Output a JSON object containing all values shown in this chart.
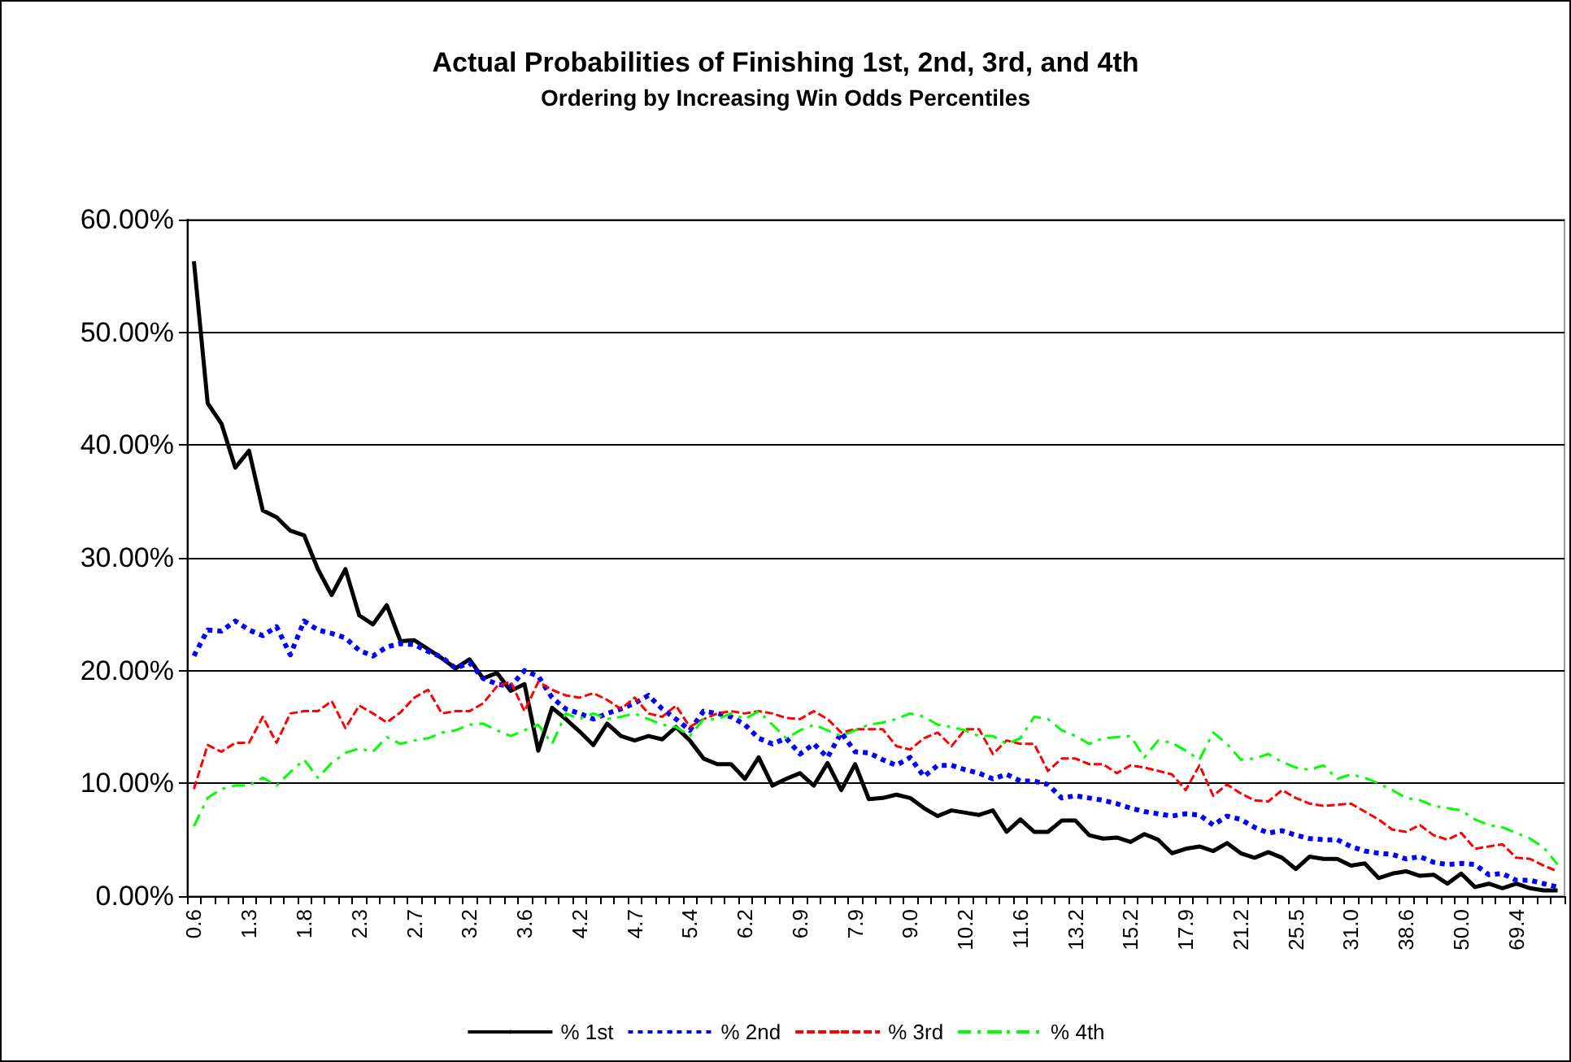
{
  "chart_data": {
    "type": "line",
    "title": "Actual Probabilities of Finishing 1st, 2nd, 3rd, and 4th",
    "subtitle": "Ordering by Increasing Win Odds Percentiles",
    "categories": [
      "0.6",
      null,
      null,
      null,
      "1.3",
      null,
      null,
      null,
      "1.8",
      null,
      null,
      null,
      "2.3",
      null,
      null,
      null,
      "2.7",
      null,
      null,
      null,
      "3.2",
      null,
      null,
      null,
      "3.6",
      null,
      null,
      null,
      "4.2",
      null,
      null,
      null,
      "4.7",
      null,
      null,
      null,
      "5.4",
      null,
      null,
      null,
      "6.2",
      null,
      null,
      null,
      "6.9",
      null,
      null,
      null,
      "7.9",
      null,
      null,
      null,
      "9.0",
      null,
      null,
      null,
      "10.2",
      null,
      null,
      null,
      "11.6",
      null,
      null,
      null,
      "13.2",
      null,
      null,
      null,
      "15.2",
      null,
      null,
      null,
      "17.9",
      null,
      null,
      null,
      "21.2",
      null,
      null,
      null,
      "25.5",
      null,
      null,
      null,
      "31.0",
      null,
      null,
      null,
      "38.6",
      null,
      null,
      null,
      "50.0",
      null,
      null,
      null,
      "69.4",
      null,
      null,
      null
    ],
    "series": [
      {
        "name": "% 1st",
        "color": "#000000",
        "line_style": "solid",
        "values": [
          56.3,
          43.7,
          41.9,
          38.0,
          39.5,
          34.2,
          33.6,
          32.4,
          32.0,
          29.0,
          26.7,
          29.0,
          24.9,
          24.1,
          25.8,
          22.6,
          22.7,
          21.9,
          21.1,
          20.2,
          21.0,
          19.3,
          19.8,
          18.2,
          18.8,
          12.9,
          16.7,
          15.7,
          14.6,
          13.4,
          15.3,
          14.2,
          13.8,
          14.2,
          13.9,
          15.0,
          13.8,
          12.2,
          11.7,
          11.7,
          10.4,
          12.3,
          9.8,
          10.4,
          10.9,
          9.8,
          11.8,
          9.4,
          11.7,
          8.6,
          8.7,
          9.0,
          8.7,
          7.8,
          7.1,
          7.6,
          7.4,
          7.2,
          7.6,
          5.7,
          6.8,
          5.7,
          5.7,
          6.7,
          6.7,
          5.4,
          5.1,
          5.2,
          4.8,
          5.5,
          5.0,
          3.8,
          4.2,
          4.4,
          4.0,
          4.7,
          3.8,
          3.4,
          3.9,
          3.4,
          2.4,
          3.5,
          3.3,
          3.3,
          2.7,
          2.9,
          1.6,
          2.0,
          2.2,
          1.8,
          1.9,
          1.1,
          2.0,
          0.8,
          1.1,
          0.7,
          1.1,
          0.7,
          0.5,
          0.5
        ]
      },
      {
        "name": "% 2nd",
        "color": "#0000ff",
        "line_style": "dotted",
        "values": [
          21.3,
          23.6,
          23.5,
          24.4,
          23.6,
          23.1,
          23.9,
          21.4,
          24.4,
          23.6,
          23.3,
          22.9,
          21.8,
          21.3,
          22.1,
          22.4,
          22.3,
          21.7,
          21.2,
          20.2,
          20.7,
          19.3,
          18.8,
          18.6,
          20.0,
          19.5,
          17.6,
          16.6,
          16.2,
          15.7,
          16.2,
          16.6,
          17.1,
          17.8,
          16.6,
          15.7,
          14.7,
          16.4,
          16.2,
          15.9,
          15.2,
          14.0,
          13.5,
          14.0,
          12.6,
          13.5,
          12.3,
          14.5,
          12.8,
          12.7,
          12.1,
          11.6,
          12.3,
          10.6,
          11.6,
          11.6,
          11.2,
          10.9,
          10.4,
          10.8,
          10.2,
          10.2,
          9.9,
          8.7,
          8.9,
          8.7,
          8.5,
          8.2,
          7.8,
          7.5,
          7.3,
          7.1,
          7.3,
          7.2,
          6.3,
          7.1,
          6.8,
          6.1,
          5.6,
          5.8,
          5.4,
          5.1,
          5.0,
          5.0,
          4.4,
          4.0,
          3.8,
          3.7,
          3.3,
          3.5,
          3.0,
          2.8,
          2.9,
          2.8,
          1.9,
          2.0,
          1.4,
          1.4,
          1.1,
          0.8
        ]
      },
      {
        "name": "% 3rd",
        "color": "#ff0000",
        "line_style": "dashed",
        "values": [
          9.5,
          13.4,
          12.8,
          13.6,
          13.6,
          15.9,
          13.6,
          16.2,
          16.4,
          16.4,
          17.3,
          14.9,
          16.9,
          16.2,
          15.4,
          16.3,
          17.6,
          18.3,
          16.2,
          16.4,
          16.4,
          17.1,
          18.6,
          19.0,
          16.4,
          19.0,
          18.3,
          17.8,
          17.6,
          18.0,
          17.4,
          16.6,
          17.6,
          16.2,
          15.9,
          16.9,
          15.0,
          15.7,
          16.2,
          16.4,
          16.2,
          16.4,
          16.2,
          15.8,
          15.7,
          16.4,
          15.7,
          14.5,
          14.8,
          14.8,
          14.8,
          13.3,
          13.0,
          14.0,
          14.5,
          13.3,
          14.8,
          14.8,
          12.6,
          13.8,
          13.5,
          13.5,
          11.1,
          12.2,
          12.2,
          11.7,
          11.7,
          10.9,
          11.6,
          11.4,
          11.1,
          10.8,
          9.4,
          11.6,
          8.9,
          9.9,
          9.1,
          8.5,
          8.4,
          9.4,
          8.7,
          8.2,
          8.0,
          8.1,
          8.2,
          7.5,
          6.8,
          5.9,
          5.7,
          6.3,
          5.4,
          5.0,
          5.6,
          4.2,
          4.4,
          4.6,
          3.4,
          3.3,
          2.7,
          2.2
        ]
      },
      {
        "name": "% 4th",
        "color": "#00ff00",
        "line_style": "dashdot",
        "values": [
          6.2,
          8.7,
          9.5,
          9.8,
          9.8,
          10.5,
          9.8,
          11.0,
          12.1,
          10.5,
          11.8,
          12.7,
          13.1,
          12.8,
          14.1,
          13.5,
          13.8,
          14.0,
          14.5,
          14.7,
          15.2,
          15.3,
          14.7,
          14.2,
          14.7,
          15.2,
          13.5,
          16.2,
          15.7,
          16.2,
          15.7,
          15.9,
          16.2,
          15.7,
          15.2,
          15.0,
          14.2,
          15.7,
          15.7,
          16.2,
          15.7,
          16.4,
          15.2,
          14.0,
          14.7,
          15.2,
          14.7,
          14.2,
          14.7,
          15.2,
          15.4,
          15.7,
          16.2,
          15.9,
          15.2,
          15.0,
          14.7,
          14.2,
          14.2,
          13.5,
          14.0,
          15.9,
          15.7,
          14.7,
          14.2,
          13.5,
          14.0,
          14.1,
          14.2,
          12.3,
          13.8,
          13.6,
          12.9,
          12.1,
          14.5,
          13.5,
          12.1,
          12.2,
          12.6,
          11.9,
          11.4,
          11.2,
          11.6,
          10.4,
          10.8,
          10.5,
          10.0,
          9.4,
          8.7,
          8.5,
          8.0,
          7.8,
          7.6,
          6.8,
          6.3,
          6.1,
          5.6,
          5.1,
          4.3,
          2.8
        ]
      }
    ],
    "ylim": [
      0,
      60
    ],
    "yticks": [
      {
        "value": 0,
        "label": "0.00%"
      },
      {
        "value": 10,
        "label": "10.00%"
      },
      {
        "value": 20,
        "label": "20.00%"
      },
      {
        "value": 30,
        "label": "30.00%"
      },
      {
        "value": 40,
        "label": "40.00%"
      },
      {
        "value": 50,
        "label": "50.00%"
      },
      {
        "value": 60,
        "label": "60.00%"
      }
    ],
    "grid": "y",
    "legend": "bottom",
    "marker": "none"
  }
}
